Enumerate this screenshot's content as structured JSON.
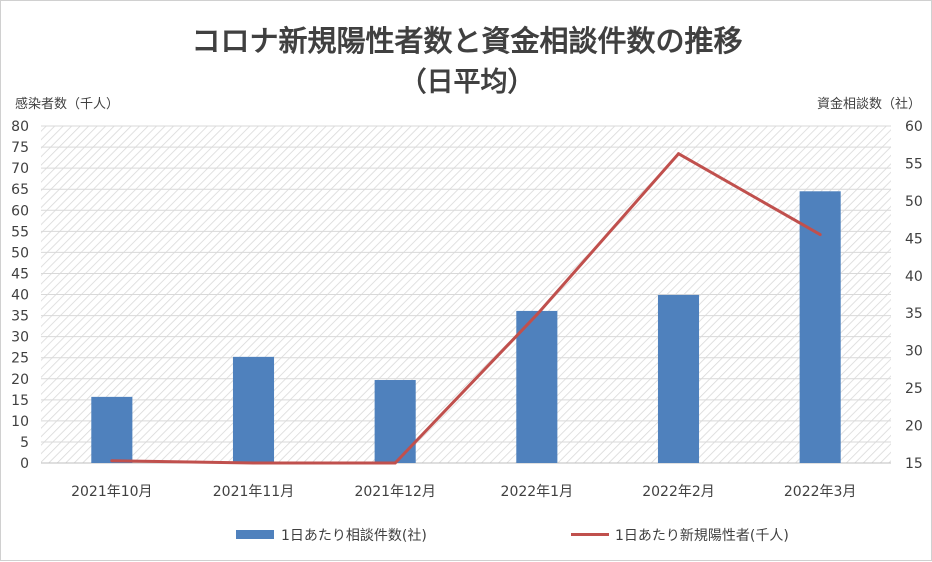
{
  "chart_data": {
    "type": "bar+line",
    "title": "コロナ新規陽性者数と資金相談件数の推移",
    "subtitle": "（日平均）",
    "ylabel_left": "感染者数（千人）",
    "ylabel_right": "資金相談数（社）",
    "categories": [
      "2021年10月",
      "2021年11月",
      "2021年12月",
      "2022年1月",
      "2022年2月",
      "2022年3月"
    ],
    "left_axis": {
      "min": 0,
      "max": 80,
      "step": 5
    },
    "right_axis": {
      "min": 15,
      "max": 60,
      "step": 5
    },
    "series": [
      {
        "name": "1日あたり相談件数(社)",
        "type": "bar",
        "axis": "left",
        "color": "#4f81bd",
        "values": [
          15.7,
          25.2,
          19.7,
          36.1,
          39.9,
          64.5
        ]
      },
      {
        "name": "1日あたり新規陽性者(千人)",
        "type": "line",
        "axis": "right",
        "color": "#c0504d",
        "values": [
          15.3,
          15.0,
          15.0,
          34.8,
          56.3,
          45.5
        ]
      }
    ],
    "grid": true,
    "legend_position": "bottom",
    "plot_background": "hatched"
  }
}
